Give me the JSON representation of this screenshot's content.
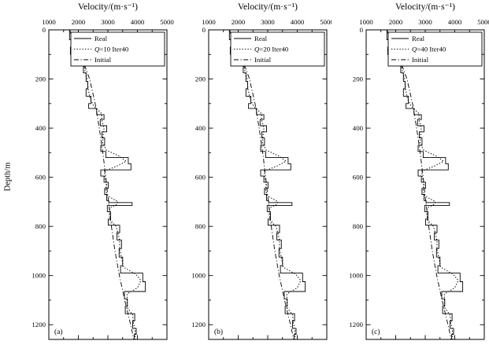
{
  "figure": {
    "title": "Velocity/(m·s⁻¹)",
    "ylabel": "Depth/m",
    "background": "#ffffff",
    "line_color": "#000000"
  },
  "chart_data": {
    "type": "line",
    "title": "Velocity/(m·s⁻¹)",
    "xlabel": "Velocity/(m·s⁻¹)",
    "ylabel": "Depth/m",
    "xlim": [
      1000,
      5000
    ],
    "ylim": [
      0,
      1260
    ],
    "xticks": [
      1000,
      2000,
      3000,
      4000,
      5000
    ],
    "yticks": [
      0,
      200,
      400,
      600,
      800,
      1000,
      1200
    ],
    "x_minor_step": 500,
    "y_minor_step": 100,
    "grid": false,
    "legend_position": "upper right inside",
    "panels": [
      {
        "label": "(a)",
        "legend": [
          {
            "name": "Real",
            "style": "solid"
          },
          {
            "name": "Q=10 Iter40",
            "style": "dotted"
          },
          {
            "name": "Initial",
            "style": "dashdot"
          }
        ]
      },
      {
        "label": "(b)",
        "legend": [
          {
            "name": "Real",
            "style": "solid"
          },
          {
            "name": "Q=20 Iter40",
            "style": "dotted"
          },
          {
            "name": "Initial",
            "style": "dashdot"
          }
        ]
      },
      {
        "label": "(c)",
        "legend": [
          {
            "name": "Real",
            "style": "solid"
          },
          {
            "name": "Q=40 Iter40",
            "style": "dotted"
          },
          {
            "name": "Initial",
            "style": "dashdot"
          }
        ]
      }
    ],
    "series": {
      "real": {
        "style": "solid",
        "step": true,
        "points_depth_velocity": [
          [
            0,
            1700
          ],
          [
            40,
            1780
          ],
          [
            70,
            1730
          ],
          [
            100,
            2150
          ],
          [
            125,
            2230
          ],
          [
            150,
            2170
          ],
          [
            175,
            2260
          ],
          [
            210,
            2320
          ],
          [
            240,
            2260
          ],
          [
            270,
            2430
          ],
          [
            300,
            2350
          ],
          [
            320,
            2620
          ],
          [
            345,
            2870
          ],
          [
            365,
            2740
          ],
          [
            390,
            2960
          ],
          [
            415,
            2800
          ],
          [
            440,
            2890
          ],
          [
            470,
            2760
          ],
          [
            495,
            2930
          ],
          [
            520,
            3690
          ],
          [
            545,
            3780
          ],
          [
            570,
            2760
          ],
          [
            595,
            2870
          ],
          [
            620,
            3010
          ],
          [
            645,
            2890
          ],
          [
            670,
            2960
          ],
          [
            695,
            3030
          ],
          [
            703,
            3820
          ],
          [
            715,
            2980
          ],
          [
            740,
            3090
          ],
          [
            770,
            3010
          ],
          [
            795,
            3400
          ],
          [
            825,
            3310
          ],
          [
            855,
            3460
          ],
          [
            890,
            3380
          ],
          [
            925,
            3500
          ],
          [
            960,
            3430
          ],
          [
            990,
            4180
          ],
          [
            1025,
            4270
          ],
          [
            1065,
            3560
          ],
          [
            1095,
            3660
          ],
          [
            1125,
            3590
          ],
          [
            1155,
            3910
          ],
          [
            1185,
            3840
          ],
          [
            1215,
            3960
          ],
          [
            1240,
            3890
          ]
        ]
      },
      "inverted": {
        "style": "dotted",
        "step": false,
        "points_depth_velocity": [
          [
            0,
            1700
          ],
          [
            40,
            1800
          ],
          [
            80,
            1980
          ],
          [
            100,
            2120
          ],
          [
            130,
            2200
          ],
          [
            160,
            2210
          ],
          [
            200,
            2300
          ],
          [
            240,
            2330
          ],
          [
            280,
            2400
          ],
          [
            310,
            2520
          ],
          [
            340,
            2780
          ],
          [
            370,
            2800
          ],
          [
            400,
            2870
          ],
          [
            430,
            2840
          ],
          [
            460,
            2820
          ],
          [
            490,
            2950
          ],
          [
            515,
            3400
          ],
          [
            535,
            3620
          ],
          [
            555,
            3300
          ],
          [
            575,
            2880
          ],
          [
            600,
            2900
          ],
          [
            625,
            2950
          ],
          [
            650,
            2930
          ],
          [
            675,
            2980
          ],
          [
            700,
            3350
          ],
          [
            712,
            3280
          ],
          [
            725,
            3060
          ],
          [
            750,
            3050
          ],
          [
            775,
            3080
          ],
          [
            800,
            3280
          ],
          [
            830,
            3350
          ],
          [
            860,
            3400
          ],
          [
            895,
            3400
          ],
          [
            930,
            3470
          ],
          [
            965,
            3520
          ],
          [
            995,
            3950
          ],
          [
            1020,
            4120
          ],
          [
            1050,
            4000
          ],
          [
            1075,
            3650
          ],
          [
            1100,
            3650
          ],
          [
            1130,
            3650
          ],
          [
            1160,
            3840
          ],
          [
            1190,
            3860
          ],
          [
            1220,
            3920
          ],
          [
            1260,
            3930
          ]
        ]
      },
      "initial": {
        "style": "dashdot",
        "step": false,
        "points_depth_velocity": [
          [
            0,
            1700
          ],
          [
            100,
            2080
          ],
          [
            200,
            2380
          ],
          [
            300,
            2570
          ],
          [
            400,
            2710
          ],
          [
            500,
            2830
          ],
          [
            600,
            2930
          ],
          [
            700,
            3020
          ],
          [
            800,
            3120
          ],
          [
            900,
            3240
          ],
          [
            1000,
            3390
          ],
          [
            1100,
            3570
          ],
          [
            1200,
            3770
          ],
          [
            1260,
            3880
          ]
        ]
      }
    }
  }
}
